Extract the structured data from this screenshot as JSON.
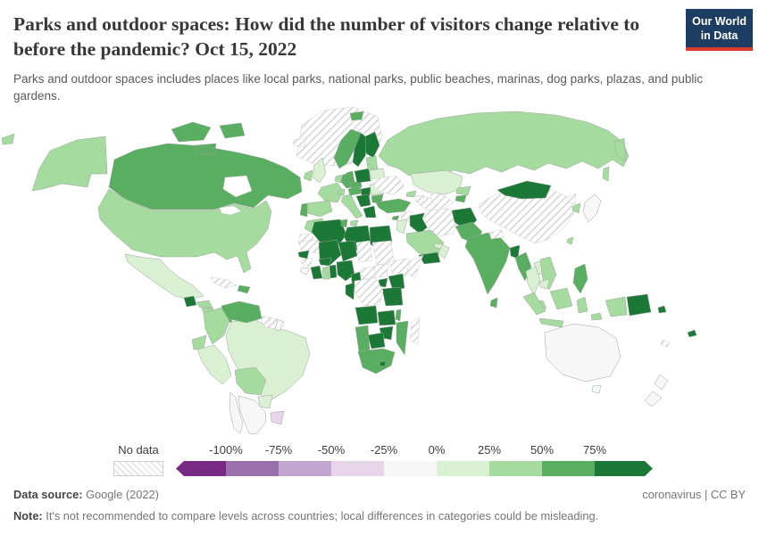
{
  "header": {
    "title": "Parks and outdoor spaces: How did the number of visitors change relative to before the pandemic? Oct 15, 2022",
    "subtitle": "Parks and outdoor spaces includes places like local parks, national parks, public beaches, marinas, dog parks, plazas, and public gardens.",
    "logo_line1": "Our World",
    "logo_line2": "in Data",
    "logo_bg_color": "#1d3d63",
    "logo_accent_color": "#d93b2b"
  },
  "footer": {
    "source_label": "Data source:",
    "source_value": "Google (2022)",
    "right_text": "coronavirus | CC BY",
    "note_label": "Note:",
    "note_text": "It's not recommended to compare levels across countries; local differences in categories could be misleading."
  },
  "chart_data": {
    "type": "choropleth_map",
    "title": "Parks and outdoor spaces: How did the number of visitors change relative to before the pandemic?",
    "date": "Oct 15, 2022",
    "unit": "% change relative to pre-pandemic baseline",
    "legend": {
      "no_data_label": "No data",
      "ticks": [
        "-100%",
        "-75%",
        "-50%",
        "-25%",
        "0%",
        "25%",
        "50%",
        "75%"
      ],
      "segment_order": [
        "lt-100",
        "-100--75",
        "-75--50",
        "-50--25",
        "-25-0",
        "0-25",
        "25-50",
        "50-75",
        "75+"
      ],
      "bucket_colors": {
        "lt-100": "#762a83",
        "-100--75": "#9970ab",
        "-75--50": "#c2a5cf",
        "-50--25": "#e7d4e8",
        "-25-0": "#f7f7f7",
        "0-25": "#d9f0d3",
        "25-50": "#a6dba0",
        "50-75": "#5aae61",
        "75+": "#1b7837"
      }
    },
    "countries": {
      "United States": "25-50",
      "Canada": "50-75",
      "Greenland": "no_data",
      "Mexico": "0-25",
      "Guatemala": "75+",
      "Honduras": "25-50",
      "Nicaragua": "25-50",
      "Costa Rica": "25-50",
      "Panama": "50-75",
      "Cuba": "no_data",
      "Dominican Republic": "50-75",
      "Venezuela": "50-75",
      "Colombia": "25-50",
      "Guyana": "no_data",
      "Suriname": "no_data",
      "French Guiana": "-25-0",
      "Ecuador": "25-50",
      "Peru": "0-25",
      "Brazil": "0-25",
      "Bolivia": "25-50",
      "Paraguay": "0-25",
      "Uruguay": "-50--25",
      "Argentina": "-25-0",
      "Chile": "-25-0",
      "Iceland": "no_data",
      "Norway": "50-75",
      "Sweden": "75+",
      "Finland": "75+",
      "Denmark": "75+",
      "United Kingdom": "0-25",
      "Ireland": "25-50",
      "Netherlands": "25-50",
      "Germany": "50-75",
      "France": "25-50",
      "Spain": "25-50",
      "Portugal": "50-75",
      "Switzerland": "25-50",
      "Italy": "25-50",
      "Austria": "50-75",
      "Czechia": "50-75",
      "Poland": "75+",
      "Hungary": "75+",
      "Serbia": "75+",
      "Greece": "75+",
      "Romania": "0-25",
      "Bulgaria": "50-75",
      "Lithuania": "25-50",
      "Belarus": "0-25",
      "Ukraine": "no_data",
      "Russia": "25-50",
      "Kazakhstan": "0-25",
      "Turkmenistan": "no_data",
      "Uzbekistan": "no_data",
      "Kyrgyzstan": "25-50",
      "Tajikistan": "50-75",
      "Georgia": "25-50",
      "Azerbaijan": "no_data",
      "Turkey": "50-75",
      "Cyprus": "50-75",
      "Syria": "no_data",
      "Jordan": "0-25",
      "Iraq": "75+",
      "Iran": "no_data",
      "Saudi Arabia": "25-50",
      "Yemen": "75+",
      "Oman": "0-25",
      "United Arab Emirates": "0-25",
      "Afghanistan": "75+",
      "Pakistan": "50-75",
      "India": "50-75",
      "Nepal": "no_data",
      "Bangladesh": "75+",
      "Sri Lanka": "50-75",
      "China": "no_data",
      "Mongolia": "75+",
      "North Korea": "no_data",
      "South Korea": "25-50",
      "Japan": "-25-0",
      "Taiwan": "25-50",
      "Myanmar": "50-75",
      "Thailand": "0-25",
      "Laos": "0-25",
      "Vietnam": "25-50",
      "Cambodia": "0-25",
      "Malaysia": "25-50",
      "Philippines": "50-75",
      "Indonesia": "25-50",
      "Papua New Guinea": "75+",
      "Solomon Islands": "75+",
      "Fiji": "75+",
      "New Caledonia": "no_data",
      "Australia": "-25-0",
      "New Zealand": "-25-0",
      "Morocco": "25-50",
      "Western Sahara": "no_data",
      "Mauritania": "no_data",
      "Algeria": "75+",
      "Tunisia": "50-75",
      "Libya": "75+",
      "Egypt": "75+",
      "Mali": "75+",
      "Niger": "75+",
      "Chad": "no_data",
      "Sudan": "no_data",
      "Senegal": "75+",
      "Guinea": "no_data",
      "Sierra Leone": "-25-0",
      "Cote d'Ivoire": "75+",
      "Ghana": "25-50",
      "Benin": "75+",
      "Burkina Faso": "75+",
      "Nigeria": "75+",
      "Cameroon": "75+",
      "Central African Republic": "no_data",
      "South Sudan": "no_data",
      "Ethiopia": "no_data",
      "Somalia": "no_data",
      "Uganda": "75+",
      "Kenya": "75+",
      "Tanzania": "75+",
      "Democratic Republic of Congo": "no_data",
      "Gabon": "75+",
      "Angola": "75+",
      "Zambia": "75+",
      "Malawi": "50-75",
      "Mozambique": "50-75",
      "Zimbabwe": "75+",
      "Botswana": "75+",
      "Namibia": "50-75",
      "South Africa": "50-75",
      "Lesotho": "75+",
      "Madagascar": "no_data"
    }
  }
}
